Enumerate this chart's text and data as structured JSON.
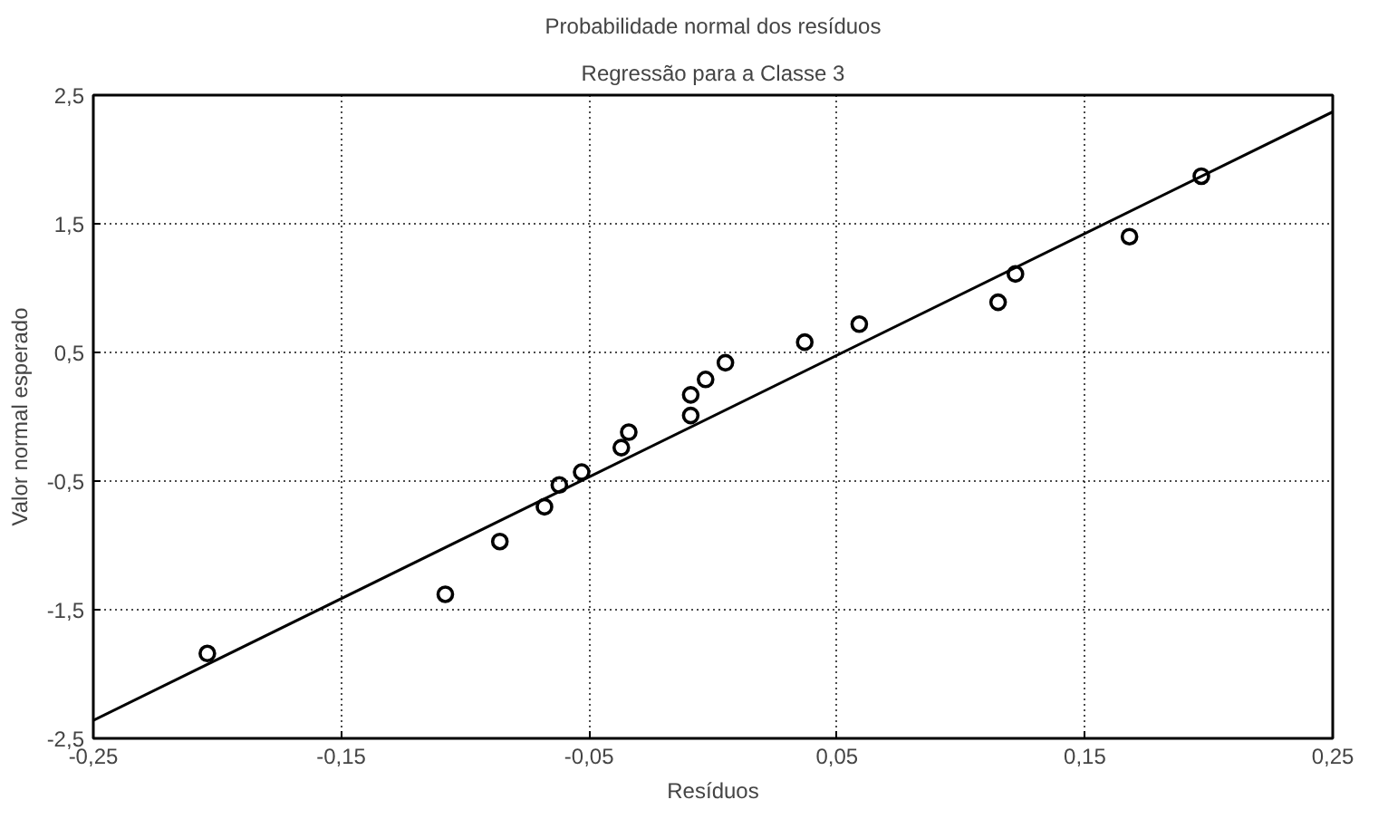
{
  "chart_data": {
    "type": "scatter",
    "title": "Probabilidade normal dos resíduos",
    "subtitle": "Regressão para a Classe 3",
    "xlabel": "Resíduos",
    "ylabel": "Valor normal esperado",
    "xlim": [
      -0.25,
      0.25
    ],
    "ylim": [
      -2.5,
      2.5
    ],
    "xticks": [
      {
        "value": -0.25,
        "label": "-0,25"
      },
      {
        "value": -0.15,
        "label": "-0,15"
      },
      {
        "value": -0.05,
        "label": "-0,05"
      },
      {
        "value": 0.05,
        "label": "0,05"
      },
      {
        "value": 0.15,
        "label": "0,15"
      },
      {
        "value": 0.25,
        "label": "0,25"
      }
    ],
    "yticks": [
      {
        "value": -2.5,
        "label": "-2,5"
      },
      {
        "value": -1.5,
        "label": "-1,5"
      },
      {
        "value": -0.5,
        "label": "-0,5"
      },
      {
        "value": 0.5,
        "label": "0,5"
      },
      {
        "value": 1.5,
        "label": "1,5"
      },
      {
        "value": 2.5,
        "label": "2,5"
      }
    ],
    "grid": true,
    "series": [
      {
        "color": "#000000",
        "marker": "circle",
        "x": [
          -0.204,
          -0.108,
          -0.086,
          -0.068,
          -0.062,
          -0.053,
          -0.037,
          -0.034,
          -0.009,
          -0.009,
          -0.003,
          0.005,
          0.037,
          0.059,
          0.115,
          0.122,
          0.168,
          0.197
        ],
        "values": [
          -1.84,
          -1.38,
          -0.97,
          -0.7,
          -0.53,
          -0.43,
          -0.24,
          -0.12,
          0.01,
          0.17,
          0.29,
          0.42,
          0.58,
          0.72,
          0.89,
          1.11,
          1.4,
          1.87
        ]
      },
      {
        "type": "line",
        "color": "#000000",
        "line_style": "solid",
        "marker": "none",
        "x": [
          -0.25,
          0.25
        ],
        "values": [
          -2.36,
          2.37
        ]
      }
    ]
  }
}
